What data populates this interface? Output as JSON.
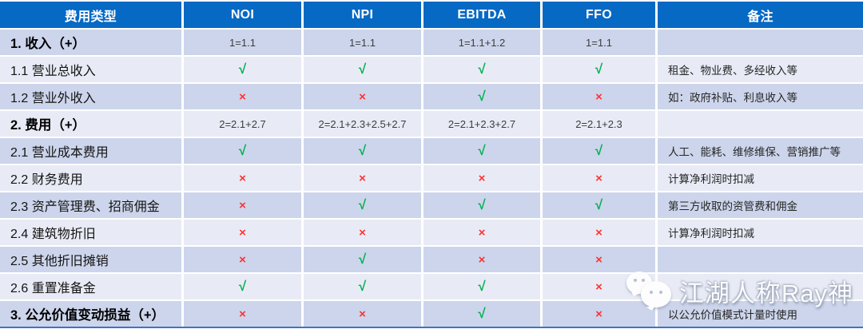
{
  "colors": {
    "header_bg": "#0669c4",
    "row_dark": "#ccd5eb",
    "row_light": "#e8ebf5",
    "check_green": "#00b050",
    "cross_red": "#ff3232",
    "bottom_border_blue": "#4472c4"
  },
  "table": {
    "headers": [
      "费用类型",
      "NOI",
      "NPI",
      "EBITDA",
      "FFO",
      "备注"
    ],
    "rows": [
      {
        "label": "1. 收入（+）",
        "cells": [
          "1=1.1",
          "1=1.1",
          "1=1.1+1.2",
          "1=1.1"
        ],
        "remark": ""
      },
      {
        "label": "1.1 营业总收入",
        "cells": [
          "√",
          "√",
          "√",
          "√"
        ],
        "remark": "租金、物业费、多经收入等"
      },
      {
        "label": "1.2 营业外收入",
        "cells": [
          "×",
          "×",
          "√",
          "×"
        ],
        "remark": "如：政府补贴、利息收入等"
      },
      {
        "label": "2. 费用（+）",
        "cells": [
          "2=2.1+2.7",
          "2=2.1+2.3+2.5+2.7",
          "2=2.1+2.3+2.7",
          "2=2.1+2.3"
        ],
        "remark": ""
      },
      {
        "label": "2.1 营业成本费用",
        "cells": [
          "√",
          "√",
          "√",
          "√"
        ],
        "remark": "人工、能耗、维修维保、营销推广等"
      },
      {
        "label": "2.2 财务费用",
        "cells": [
          "×",
          "×",
          "×",
          "×"
        ],
        "remark": "计算净利润时扣减"
      },
      {
        "label": "2.3 资产管理费、招商佣金",
        "cells": [
          "×",
          "√",
          "√",
          "√"
        ],
        "remark": "第三方收取的资管费和佣金"
      },
      {
        "label": "2.4 建筑物折旧",
        "cells": [
          "×",
          "×",
          "×",
          "×"
        ],
        "remark": "计算净利润时扣减"
      },
      {
        "label": "2.5 其他折旧摊销",
        "cells": [
          "×",
          "√",
          "×",
          "×"
        ],
        "remark": ""
      },
      {
        "label": "2.6 重置准备金",
        "cells": [
          "√",
          "√",
          "√",
          "×"
        ],
        "remark": ""
      },
      {
        "label": "3. 公允价值变动损益（+）",
        "cells": [
          "×",
          "×",
          "√",
          "×"
        ],
        "remark": "以公允价值模式计量时使用"
      }
    ]
  },
  "watermark": {
    "icon": "wechat-icon",
    "text": "江湖人称Ray神"
  }
}
